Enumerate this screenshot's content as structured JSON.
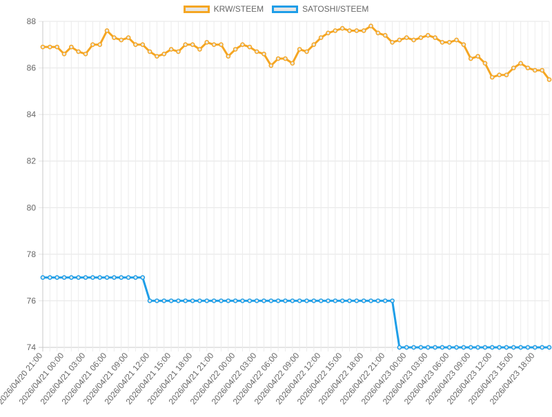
{
  "chart_data": {
    "type": "line",
    "x": [
      "2026/04/20 21:00",
      "2026/04/20 22:00",
      "2026/04/20 23:00",
      "2026/04/21 00:00",
      "2026/04/21 01:00",
      "2026/04/21 02:00",
      "2026/04/21 03:00",
      "2026/04/21 04:00",
      "2026/04/21 05:00",
      "2026/04/21 06:00",
      "2026/04/21 07:00",
      "2026/04/21 08:00",
      "2026/04/21 09:00",
      "2026/04/21 10:00",
      "2026/04/21 11:00",
      "2026/04/21 12:00",
      "2026/04/21 13:00",
      "2026/04/21 14:00",
      "2026/04/21 15:00",
      "2026/04/21 16:00",
      "2026/04/21 17:00",
      "2026/04/21 18:00",
      "2026/04/21 19:00",
      "2026/04/21 20:00",
      "2026/04/21 21:00",
      "2026/04/21 22:00",
      "2026/04/21 23:00",
      "2026/04/22 00:00",
      "2026/04/22 01:00",
      "2026/04/22 02:00",
      "2026/04/22 03:00",
      "2026/04/22 04:00",
      "2026/04/22 05:00",
      "2026/04/22 06:00",
      "2026/04/22 07:00",
      "2026/04/22 08:00",
      "2026/04/22 09:00",
      "2026/04/22 10:00",
      "2026/04/22 11:00",
      "2026/04/22 12:00",
      "2026/04/22 13:00",
      "2026/04/22 14:00",
      "2026/04/22 15:00",
      "2026/04/22 16:00",
      "2026/04/22 17:00",
      "2026/04/22 18:00",
      "2026/04/22 19:00",
      "2026/04/22 20:00",
      "2026/04/22 21:00",
      "2026/04/22 22:00",
      "2026/04/22 23:00",
      "2026/04/23 00:00",
      "2026/04/23 01:00",
      "2026/04/23 02:00",
      "2026/04/23 03:00",
      "2026/04/23 04:00",
      "2026/04/23 05:00",
      "2026/04/23 06:00",
      "2026/04/23 07:00",
      "2026/04/23 08:00",
      "2026/04/23 09:00",
      "2026/04/23 10:00",
      "2026/04/23 11:00",
      "2026/04/23 12:00",
      "2026/04/23 13:00",
      "2026/04/23 14:00",
      "2026/04/23 15:00",
      "2026/04/23 16:00",
      "2026/04/23 17:00",
      "2026/04/23 18:00",
      "2026/04/23 19:00",
      "2026/04/23 20:00"
    ],
    "tick_labels": [
      "2026/04/20 21:00",
      "2026/04/21 00:00",
      "2026/04/21 03:00",
      "2026/04/21 06:00",
      "2026/04/21 09:00",
      "2026/04/21 12:00",
      "2026/04/21 15:00",
      "2026/04/21 18:00",
      "2026/04/21 21:00",
      "2026/04/22 00:00",
      "2026/04/22 03:00",
      "2026/04/22 06:00",
      "2026/04/22 09:00",
      "2026/04/22 12:00",
      "2026/04/22 15:00",
      "2026/04/22 18:00",
      "2026/04/22 21:00",
      "2026/04/23 00:00",
      "2026/04/23 03:00",
      "2026/04/23 06:00",
      "2026/04/23 09:00",
      "2026/04/23 12:00",
      "2026/04/23 15:00",
      "2026/04/23 18:00"
    ],
    "series": [
      {
        "name": "KRW/STEEM",
        "color": "#f5a623",
        "values": [
          86.9,
          86.9,
          86.9,
          86.6,
          86.9,
          86.7,
          86.6,
          87.0,
          87.0,
          87.6,
          87.3,
          87.2,
          87.3,
          87.0,
          87.0,
          86.7,
          86.5,
          86.6,
          86.8,
          86.7,
          87.0,
          87.0,
          86.8,
          87.1,
          87.0,
          87.0,
          86.5,
          86.8,
          87.0,
          86.9,
          86.7,
          86.6,
          86.1,
          86.4,
          86.4,
          86.2,
          86.8,
          86.7,
          87.0,
          87.3,
          87.5,
          87.6,
          87.7,
          87.6,
          87.6,
          87.6,
          87.8,
          87.5,
          87.4,
          87.1,
          87.2,
          87.3,
          87.2,
          87.3,
          87.4,
          87.3,
          87.1,
          87.1,
          87.2,
          87.0,
          86.4,
          86.5,
          86.2,
          85.6,
          85.7,
          85.7,
          86.0,
          86.2,
          86.0,
          85.9,
          85.9,
          85.5
        ]
      },
      {
        "name": "SATOSHI/STEEM",
        "color": "#1e9ee8",
        "values": [
          77,
          77,
          77,
          77,
          77,
          77,
          77,
          77,
          77,
          77,
          77,
          77,
          77,
          77,
          77,
          76,
          76,
          76,
          76,
          76,
          76,
          76,
          76,
          76,
          76,
          76,
          76,
          76,
          76,
          76,
          76,
          76,
          76,
          76,
          76,
          76,
          76,
          76,
          76,
          76,
          76,
          76,
          76,
          76,
          76,
          76,
          76,
          76,
          76,
          76,
          74,
          74,
          74,
          74,
          74,
          74,
          74,
          74,
          74,
          74,
          74,
          74,
          74,
          74,
          74,
          74,
          74,
          74,
          74,
          74,
          74,
          74
        ]
      }
    ],
    "ylim": [
      74,
      88
    ],
    "yticks": [
      "74",
      "76",
      "78",
      "80",
      "82",
      "84",
      "86",
      "88"
    ],
    "grid": true,
    "legend": "top-center",
    "title": "",
    "xlabel": "",
    "ylabel": ""
  }
}
